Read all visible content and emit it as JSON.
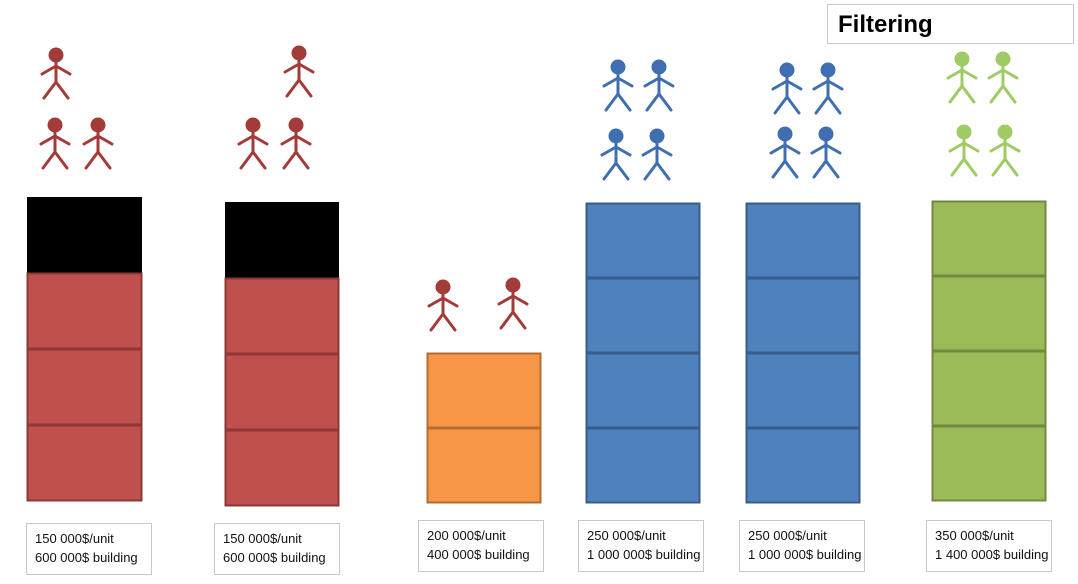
{
  "title": "Filtering",
  "colors": {
    "red": "#c0504d",
    "red_border": "#8c3836",
    "black": "#000000",
    "orange": "#f79646",
    "orange_border": "#b66d31",
    "blue": "#4f81bd",
    "blue_border": "#385d8a",
    "green": "#9bbb59",
    "green_border": "#71893f",
    "person_red": "#a33b38",
    "person_blue": "#3f6fb0",
    "person_green": "#9fcb64"
  },
  "buildings": [
    {
      "id": "b1",
      "color": "red",
      "units": 3,
      "black_top": true,
      "people": 3,
      "person_color": "person_red",
      "price_label": "150 000$/unit",
      "building_label": "600 000$ building"
    },
    {
      "id": "b2",
      "color": "red",
      "units": 3,
      "black_top": true,
      "people": 3,
      "person_color": "person_red",
      "price_label": "150 000$/unit",
      "building_label": "600 000$ building"
    },
    {
      "id": "b3",
      "color": "orange",
      "units": 2,
      "black_top": false,
      "people": 2,
      "person_color": "person_red",
      "price_label": "200 000$/unit",
      "building_label": "400 000$ building"
    },
    {
      "id": "b4",
      "color": "blue",
      "units": 4,
      "black_top": false,
      "people": 4,
      "person_color": "person_blue",
      "price_label": "250 000$/unit",
      "building_label": "1 000 000$ building"
    },
    {
      "id": "b5",
      "color": "blue",
      "units": 4,
      "black_top": false,
      "people": 4,
      "person_color": "person_blue",
      "price_label": "250 000$/unit",
      "building_label": "1 000 000$ building"
    },
    {
      "id": "b6",
      "color": "green",
      "units": 4,
      "black_top": false,
      "people": 4,
      "person_color": "person_green",
      "price_label": "350 000$/unit",
      "building_label": "1 400 000$ building"
    }
  ]
}
